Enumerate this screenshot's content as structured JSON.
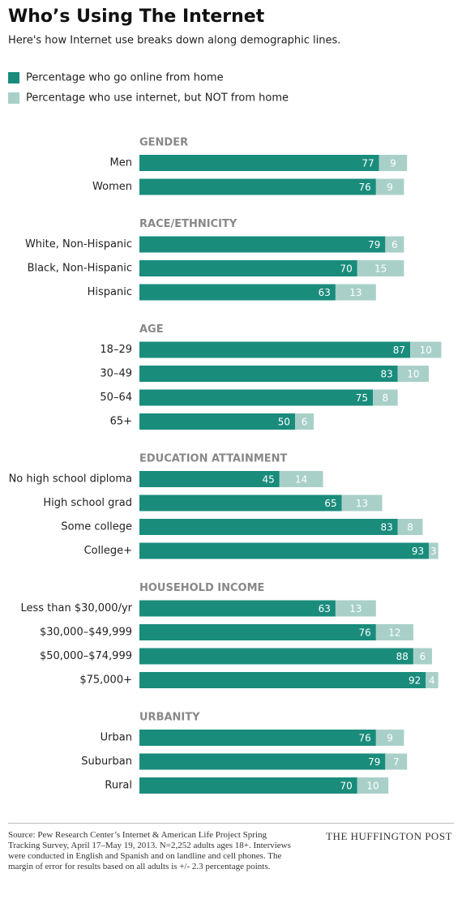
{
  "chart_data": {
    "type": "bar",
    "title": "Who’s Using The Internet",
    "subtitle": "Here's how Internet use breaks down along demographic lines.",
    "series": [
      {
        "name": "Percentage who go online from home",
        "color": "#1a8c7c"
      },
      {
        "name": "Percentage who use internet, but NOT from home",
        "color": "#a8d0c8"
      }
    ],
    "groups": [
      {
        "name": "GENDER",
        "categories": [
          "Men",
          "Women"
        ],
        "values": [
          [
            77,
            9
          ],
          [
            76,
            9
          ]
        ]
      },
      {
        "name": "RACE/ETHNICITY",
        "categories": [
          "White, Non-Hispanic",
          "Black, Non-Hispanic",
          "Hispanic"
        ],
        "values": [
          [
            79,
            6
          ],
          [
            70,
            15
          ],
          [
            63,
            13
          ]
        ]
      },
      {
        "name": "AGE",
        "categories": [
          "18–29",
          "30–49",
          "50–64",
          "65+"
        ],
        "values": [
          [
            87,
            10
          ],
          [
            83,
            10
          ],
          [
            75,
            8
          ],
          [
            50,
            6
          ]
        ]
      },
      {
        "name": "EDUCATION ATTAINMENT",
        "categories": [
          "No high school diploma",
          "High school grad",
          "Some college",
          "College+"
        ],
        "values": [
          [
            45,
            14
          ],
          [
            65,
            13
          ],
          [
            83,
            8
          ],
          [
            93,
            3
          ]
        ]
      },
      {
        "name": "HOUSEHOLD INCOME",
        "categories": [
          "Less than $30,000/yr",
          "$30,000–$49,999",
          "$50,000–$74,999",
          "$75,000+"
        ],
        "values": [
          [
            63,
            13
          ],
          [
            76,
            12
          ],
          [
            88,
            6
          ],
          [
            92,
            4
          ]
        ]
      },
      {
        "name": "URBANITY",
        "categories": [
          "Urban",
          "Suburban",
          "Rural"
        ],
        "values": [
          [
            76,
            9
          ],
          [
            79,
            7
          ],
          [
            70,
            10
          ]
        ]
      }
    ],
    "source": "Source: Pew Research Center’s Internet & American Life Project Spring Tracking Survey, April 17–May 19, 2013. N=2,252 adults ages 18+. Interviews were conducted in English and Spanish and on landline and cell phones. The margin of error for results based on all adults is +/- 2.3 percentage points.",
    "brand": "THE HUFFINGTON POST"
  }
}
